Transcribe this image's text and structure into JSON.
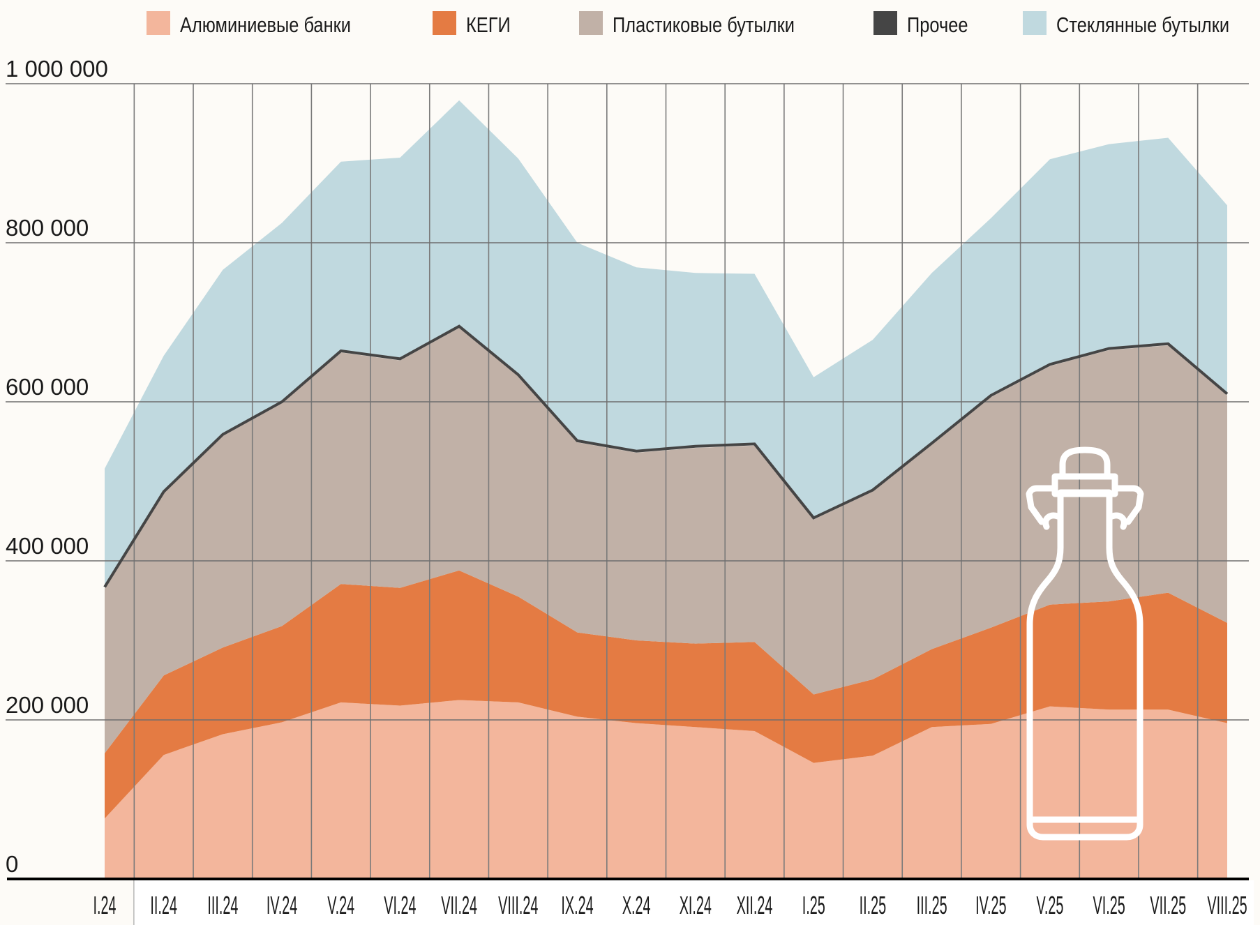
{
  "chart_data": {
    "type": "area",
    "stacked": true,
    "title": "",
    "xlabel": "",
    "ylabel": "",
    "ylim": [
      0,
      1000000
    ],
    "yticks": [
      0,
      200000,
      400000,
      600000,
      800000,
      1000000
    ],
    "ytick_labels": [
      "0",
      "200 000",
      "400 000",
      "600 000",
      "800 000",
      "1 000 000"
    ],
    "grid": true,
    "legend_position": "top",
    "categories": [
      "I.24",
      "II.24",
      "III.24",
      "IV.24",
      "V.24",
      "VI.24",
      "VII.24",
      "VIII.24",
      "IX.24",
      "X.24",
      "XI.24",
      "XII.24",
      "I.25",
      "II.25",
      "III.25",
      "IV.25",
      "V.25",
      "VI.25",
      "VII.25",
      "VIII.25"
    ],
    "series": [
      {
        "name": "Алюминиевые банки",
        "color": "#f3b69c",
        "values": [
          76000,
          156000,
          182000,
          197000,
          222000,
          218000,
          225000,
          222000,
          204000,
          196000,
          191000,
          186000,
          146000,
          155000,
          191000,
          195000,
          217000,
          213000,
          213000,
          196000
        ]
      },
      {
        "name": "КЕГИ",
        "color": "#e47b43",
        "values": [
          82000,
          100000,
          109000,
          121000,
          149000,
          148000,
          163000,
          133000,
          106000,
          104000,
          105000,
          112000,
          86000,
          96000,
          98000,
          121000,
          128000,
          136000,
          147000,
          126000
        ]
      },
      {
        "name": "Пластиковые бутылки",
        "color": "#c1b1a7",
        "values": [
          207000,
          229000,
          266000,
          280000,
          291000,
          286000,
          305000,
          277000,
          239000,
          236000,
          246000,
          247000,
          220000,
          236000,
          257000,
          290000,
          300000,
          316000,
          311000,
          286000
        ]
      },
      {
        "name": "Прочее",
        "color": "#454545",
        "values": [
          2000,
          2000,
          2000,
          2000,
          2000,
          2000,
          2000,
          2000,
          2000,
          2000,
          2000,
          2000,
          2000,
          2000,
          2000,
          2000,
          2000,
          2000,
          2000,
          2000
        ]
      },
      {
        "name": "Стеклянные бутылки",
        "color": "#c0d9df",
        "values": [
          149000,
          171000,
          207000,
          225000,
          238000,
          253000,
          284000,
          272000,
          249000,
          231000,
          218000,
          214000,
          177000,
          189000,
          214000,
          223000,
          258000,
          257000,
          259000,
          237000
        ]
      }
    ]
  }
}
